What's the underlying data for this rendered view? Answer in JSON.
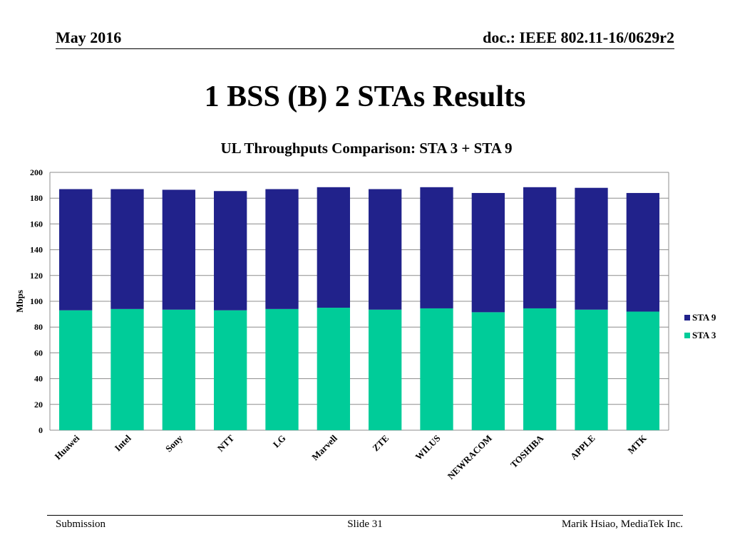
{
  "header": {
    "date": "May 2016",
    "doc": "doc.: IEEE 802.11-16/0629r2"
  },
  "slide_title": "1 BSS (B) 2 STAs Results",
  "footer": {
    "left": "Submission",
    "center": "Slide 31",
    "right": "Marik Hsiao, MediaTek Inc."
  },
  "colors": {
    "sta9": "#21228b",
    "sta3": "#00cc99",
    "grid": "#8c8c8c"
  },
  "chart_data": {
    "type": "bar",
    "stacked": true,
    "title": "UL Throughputs Comparison: STA 3 + STA 9",
    "ylabel": "Mbps",
    "xlabel": "",
    "ylim": [
      0,
      200
    ],
    "yticks": [
      0,
      20,
      40,
      60,
      80,
      100,
      120,
      140,
      160,
      180,
      200
    ],
    "grid": true,
    "legend_position": "right",
    "categories": [
      "Huawei",
      "Intel",
      "Sony",
      "NTT",
      "LG",
      "Marvell",
      "ZTE",
      "WILUS",
      "NEWRACOM",
      "TOSHIBA",
      "APPLE",
      "MTK"
    ],
    "series": [
      {
        "name": "STA 3",
        "values": [
          93,
          94,
          93.5,
          93,
          94,
          95,
          93.5,
          94.5,
          91.5,
          94.5,
          93.5,
          92
        ]
      },
      {
        "name": "STA 9",
        "values": [
          94,
          93,
          93,
          92.5,
          93,
          93.5,
          93.5,
          94,
          92.5,
          94,
          94.5,
          92
        ]
      }
    ],
    "legend_order": [
      "STA 9",
      "STA 3"
    ]
  }
}
